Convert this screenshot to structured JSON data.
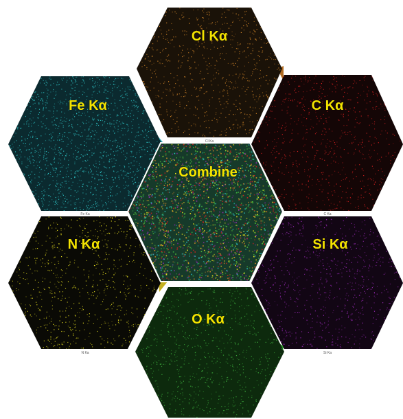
{
  "panels": [
    {
      "id": "cl",
      "title": "Cl Kα",
      "caption": "Cl Ka",
      "color": "#d98a2a",
      "bg": "#1a1208"
    },
    {
      "id": "fe",
      "title": "Fe Kα",
      "caption": "Fe Ka",
      "color": "#2ec4c6",
      "bg": "#0b2a2f"
    },
    {
      "id": "c",
      "title": "C Kα",
      "caption": "C Ka",
      "color": "#d42020",
      "bg": "#140606"
    },
    {
      "id": "combine",
      "title": "Combine",
      "caption": "",
      "color": "#4fbf3a",
      "bg": "#163a2a"
    },
    {
      "id": "n",
      "title": "N Kα",
      "caption": "N Ka",
      "color": "#e8e020",
      "bg": "#0a0a05"
    },
    {
      "id": "si",
      "title": "Si Kα",
      "caption": "Si Ka",
      "color": "#9a2ab8",
      "bg": "#120614"
    },
    {
      "id": "o",
      "title": "O Kα",
      "caption": "",
      "color": "#3fb33f",
      "bg": "#0d2a0d"
    }
  ]
}
